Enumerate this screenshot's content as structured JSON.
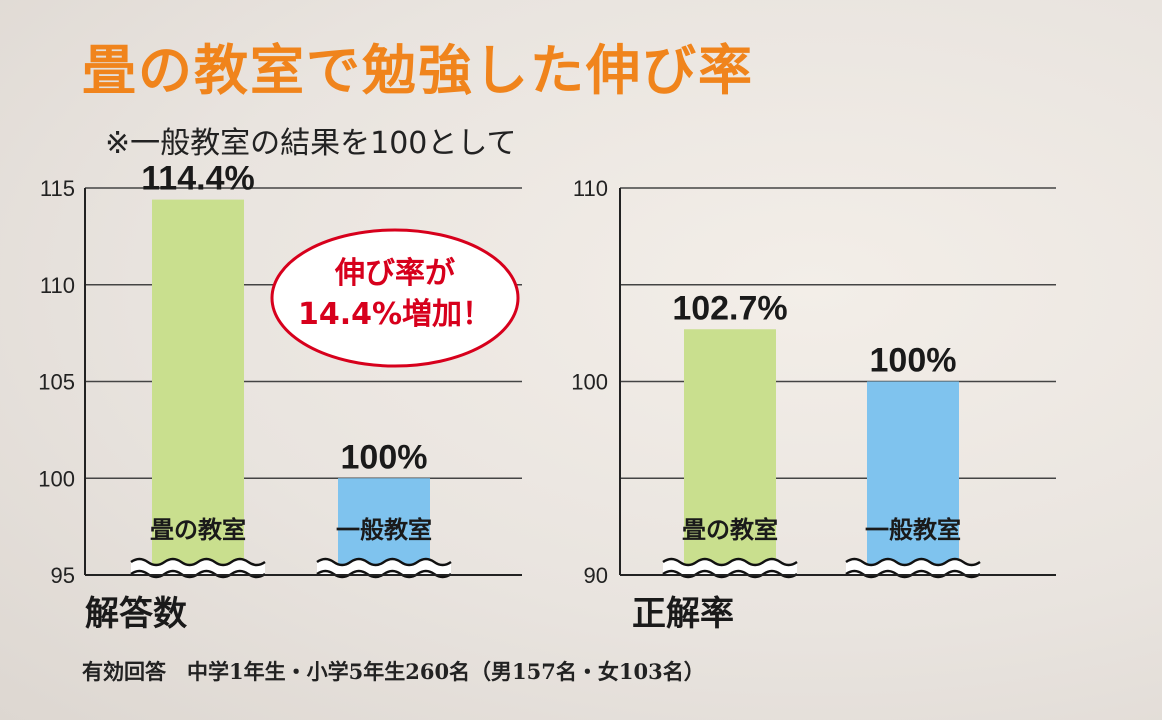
{
  "title": "畳の教室で勉強した伸び率",
  "note": "※一般教室の結果を100として",
  "footer": "有効回答　中学1年生・小学5年生260名（男157名・女103名）",
  "callout": {
    "line1": "伸び率が",
    "line2": "14.4%増加！",
    "color": "#d7001c"
  },
  "colors": {
    "tatami": "#c9df8e",
    "general": "#7fc3ee",
    "title": "#f0841c"
  },
  "chart_data": [
    {
      "type": "bar",
      "name": "解答数",
      "categories": [
        "畳の教室",
        "一般教室"
      ],
      "values": [
        114.4,
        100
      ],
      "value_labels": [
        "114.4%",
        "100%"
      ],
      "ylim": [
        95,
        115
      ],
      "yticks": [
        95,
        100,
        105,
        110,
        115
      ],
      "axis_break": true,
      "grid": true
    },
    {
      "type": "bar",
      "name": "正解率",
      "categories": [
        "畳の教室",
        "一般教室"
      ],
      "values": [
        102.7,
        100
      ],
      "value_labels": [
        "102.7%",
        "100%"
      ],
      "ylim": [
        90,
        110
      ],
      "yticks": [
        90,
        100,
        110
      ],
      "gridlines": [
        90,
        95,
        100,
        105,
        110
      ],
      "axis_break": true,
      "grid": true
    }
  ]
}
